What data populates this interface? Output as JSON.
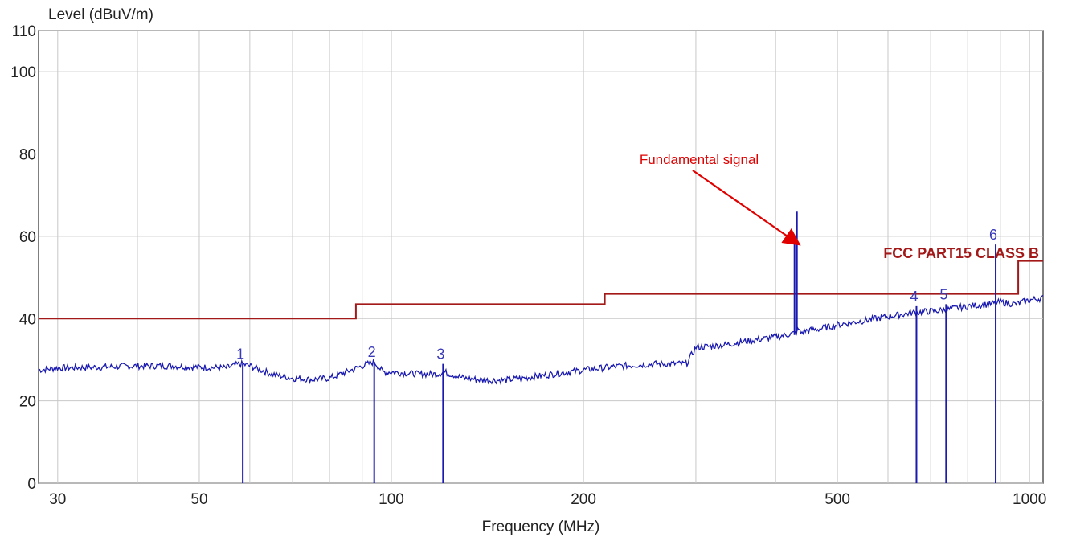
{
  "chart_data": {
    "type": "line",
    "ylabel": "Level (dBuV/m)",
    "xlabel": "Frequency (MHz)",
    "xscale": "log",
    "xlim": [
      28,
      1050
    ],
    "ylim": [
      0,
      110
    ],
    "grid": true,
    "x_ticks": [
      {
        "value": 30,
        "label": "30"
      },
      {
        "value": 50,
        "label": "50"
      },
      {
        "value": 100,
        "label": "100"
      },
      {
        "value": 200,
        "label": "200"
      },
      {
        "value": 500,
        "label": "500"
      },
      {
        "value": 1000,
        "label": "1000"
      }
    ],
    "x_minor_grid": [
      40,
      60,
      70,
      80,
      90,
      300,
      400,
      600,
      700,
      800,
      900
    ],
    "y_ticks": [
      {
        "value": 0,
        "label": "0"
      },
      {
        "value": 20,
        "label": "20"
      },
      {
        "value": 40,
        "label": "40"
      },
      {
        "value": 60,
        "label": "60"
      },
      {
        "value": 80,
        "label": "80"
      },
      {
        "value": 100,
        "label": "100"
      },
      {
        "value": 110,
        "label": "110"
      }
    ],
    "limit_line": {
      "name": "FCC PART15 CLASS B",
      "color": "#a31919",
      "segments": [
        {
          "x": [
            28,
            88
          ],
          "y": 40.0
        },
        {
          "x": [
            88,
            216
          ],
          "y": 43.5
        },
        {
          "x": [
            216,
            960
          ],
          "y": 46.0
        },
        {
          "x": [
            960,
            1050
          ],
          "y": 54.0
        }
      ]
    },
    "trace": {
      "color": "#1a1ab0",
      "x": [
        28,
        30,
        35,
        40,
        45,
        50,
        55,
        58,
        60,
        65,
        70,
        75,
        80,
        85,
        90,
        94,
        97,
        100,
        110,
        118,
        121,
        130,
        140,
        150,
        170,
        200,
        230,
        260,
        290,
        300,
        330,
        360,
        400,
        430,
        434,
        438,
        445,
        470,
        500,
        550,
        600,
        660,
        730,
        800,
        870,
        900,
        950,
        1000,
        1050
      ],
      "y": [
        27.5,
        28,
        28.2,
        28.5,
        28.5,
        28.2,
        28.0,
        29.0,
        28.5,
        26.5,
        25.5,
        25.2,
        25.5,
        27,
        28.5,
        29.5,
        27.0,
        27.0,
        26.5,
        26.5,
        27.0,
        25.5,
        25.0,
        25.0,
        26.0,
        27.5,
        28.5,
        29.0,
        29.0,
        33.0,
        33.5,
        34.5,
        35.5,
        36.5,
        37.5,
        36.5,
        37.0,
        37.5,
        38.5,
        39.5,
        40.5,
        41.5,
        42.0,
        43.0,
        43.5,
        44.0,
        43.5,
        44.5,
        45.0
      ]
    },
    "fundamental_signal": {
      "x": 432,
      "peak": 66,
      "secondary": 59
    },
    "markers": [
      {
        "label": "1",
        "x": 58.5,
        "y": 29
      },
      {
        "label": "2",
        "x": 94,
        "y": 29.5
      },
      {
        "label": "3",
        "x": 120.5,
        "y": 29
      },
      {
        "label": "4",
        "x": 665,
        "y": 43
      },
      {
        "label": "5",
        "x": 740,
        "y": 43.5
      },
      {
        "label": "6",
        "x": 885,
        "y": 58
      }
    ],
    "annotations": [
      {
        "text": "Fundamental signal",
        "color": "#e00000"
      }
    ]
  }
}
